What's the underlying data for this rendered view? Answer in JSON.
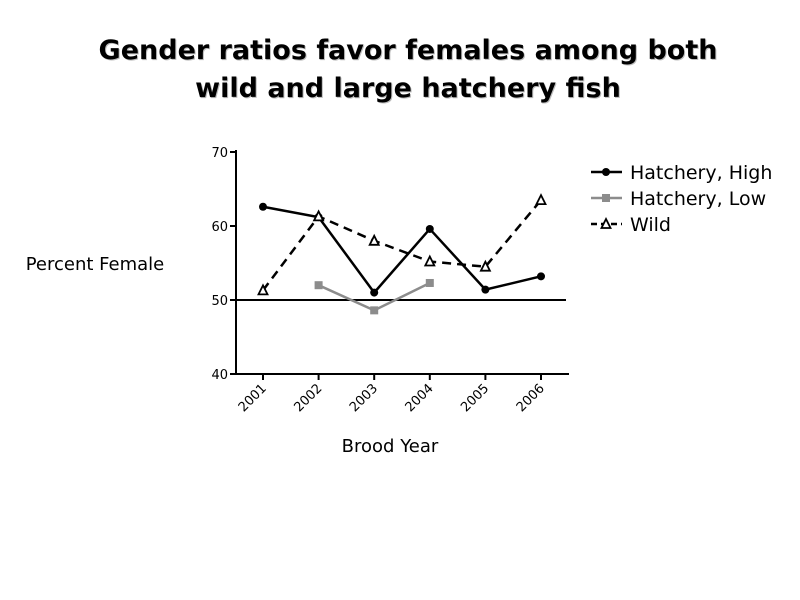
{
  "chart_data": {
    "type": "line",
    "title": [
      "Gender ratios favor females among both",
      "wild and large hatchery fish"
    ],
    "xlabel": "Brood Year",
    "ylabel": "Percent Female",
    "categories": [
      "2001",
      "2002",
      "2003",
      "2004",
      "2005",
      "2006"
    ],
    "ylim": [
      40,
      70
    ],
    "yticks": [
      40,
      50,
      60,
      70
    ],
    "reference_line": 50,
    "legend_position": "right",
    "series": [
      {
        "name": "Hatchery, High",
        "color": "#000000",
        "marker": "circle",
        "dash": "solid",
        "values": [
          62.6,
          61.2,
          51.0,
          59.6,
          51.4,
          53.2
        ]
      },
      {
        "name": "Hatchery, Low",
        "color": "#8c8c8c",
        "marker": "square",
        "dash": "solid",
        "values": [
          null,
          52.0,
          48.6,
          52.3,
          null,
          null
        ]
      },
      {
        "name": "Wild",
        "color": "#000000",
        "marker": "triangle-open",
        "dash": "dashed",
        "values": [
          51.3,
          61.3,
          58.0,
          55.2,
          54.5,
          63.5
        ]
      }
    ]
  }
}
